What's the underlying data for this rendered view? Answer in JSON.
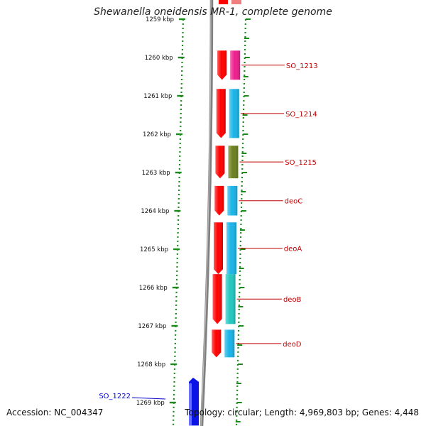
{
  "title": "Shewanella oneidensis MR-1, complete genome",
  "accession": "Accession: NC_004347",
  "topology": "Topology: circular; Length: 4,969,803 bp; Genes: 4,448",
  "ticks": [
    {
      "label": "1259 kbp",
      "kbp": 1259
    },
    {
      "label": "1260 kbp",
      "kbp": 1260
    },
    {
      "label": "1261 kbp",
      "kbp": 1261
    },
    {
      "label": "1262 kbp",
      "kbp": 1262
    },
    {
      "label": "1263 kbp",
      "kbp": 1263
    },
    {
      "label": "1264 kbp",
      "kbp": 1264
    },
    {
      "label": "1265 kbp",
      "kbp": 1265
    },
    {
      "label": "1266 kbp",
      "kbp": 1266
    },
    {
      "label": "1267 kbp",
      "kbp": 1267
    },
    {
      "label": "1268 kbp",
      "kbp": 1268
    },
    {
      "label": "1269 kbp",
      "kbp": 1269
    }
  ],
  "genes": [
    {
      "name": "SO_1213",
      "start": 1259.82,
      "end": 1260.58,
      "color": "#ee1c8c"
    },
    {
      "name": "SO_1214",
      "start": 1260.82,
      "end": 1262.1,
      "color": "#18b4e8"
    },
    {
      "name": "SO_1215",
      "start": 1262.3,
      "end": 1263.15,
      "color": "#6b7f1f"
    },
    {
      "name": "deoC",
      "start": 1263.35,
      "end": 1264.12,
      "color": "#18b4e8"
    },
    {
      "name": "deoA",
      "start": 1264.3,
      "end": 1265.65,
      "color": "#18b4e8"
    },
    {
      "name": "deoB",
      "start": 1265.65,
      "end": 1266.95,
      "color": "#22c8c0"
    },
    {
      "name": "deoD",
      "start": 1267.1,
      "end": 1267.82,
      "color": "#18b4e8"
    }
  ],
  "other_strand_gene": {
    "name": "SO_1222",
    "start": 1268.35,
    "end": 1269.6,
    "color": "#0a14e6"
  },
  "colors": {
    "forward_strand": "#ff0000",
    "backbone": "#808080",
    "gc_dots": "#1a8a1a",
    "label_fwd": "#c00000",
    "label_rev": "#0000cc"
  }
}
